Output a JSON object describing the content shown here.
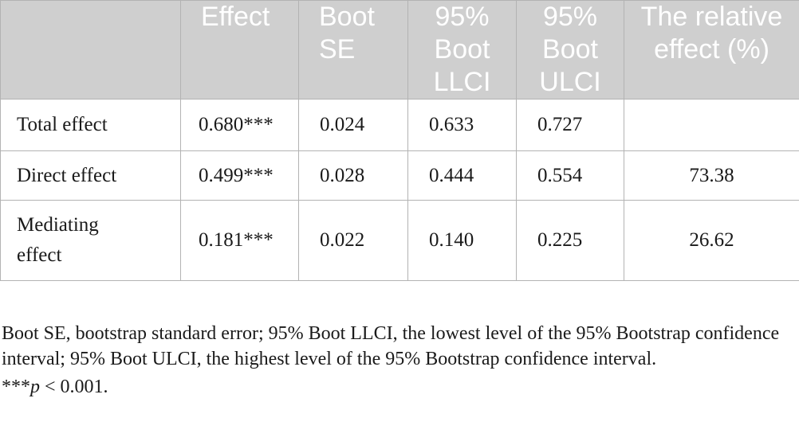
{
  "table": {
    "headers": [
      "",
      "Effect",
      "Boot SE",
      "95% Boot LLCI",
      "95% Boot ULCI",
      "The relative effect (%)"
    ],
    "rows": [
      {
        "label": "Total effect",
        "effect": "0.680***",
        "boot_se": "0.024",
        "llci": "0.633",
        "ulci": "0.727",
        "relative": ""
      },
      {
        "label": "Direct effect",
        "effect": "0.499***",
        "boot_se": "0.028",
        "llci": "0.444",
        "ulci": "0.554",
        "relative": "73.38"
      },
      {
        "label": "Mediating effect",
        "effect": "0.181***",
        "boot_se": "0.022",
        "llci": "0.140",
        "ulci": "0.225",
        "relative": "26.62"
      }
    ]
  },
  "notes": {
    "abbreviations": "Boot SE, bootstrap standard error; 95% Boot LLCI, the lowest level of the 95% Bootstrap confidence interval; 95% Boot ULCI, the highest level of the 95% Bootstrap confidence interval.",
    "significance_stars": "***",
    "significance_p": "p",
    "significance_rest": " < 0.001."
  },
  "colors": {
    "header_background": "#cfcfcf",
    "header_text": "#ffffff",
    "border": "#b3b3b3",
    "body_text": "#1a1a1a"
  }
}
